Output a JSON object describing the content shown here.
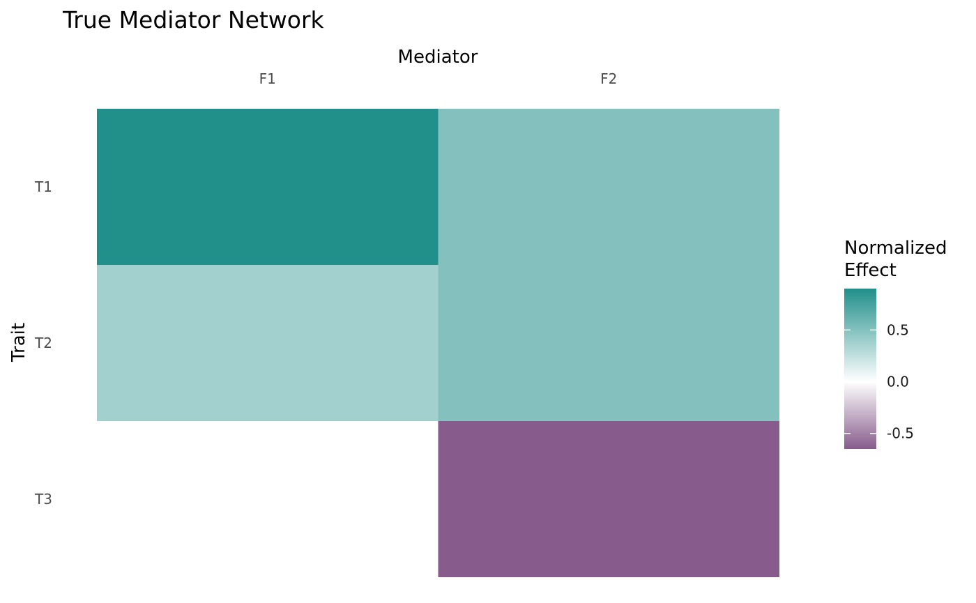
{
  "chart_data": {
    "type": "heatmap",
    "title": "True Mediator Network",
    "xlabel": "Mediator",
    "ylabel": "Trait",
    "x_categories": [
      "F1",
      "F2"
    ],
    "y_categories": [
      "T1",
      "T2",
      "T3"
    ],
    "x_axis_position": "top",
    "cells": [
      {
        "x": "F1",
        "y": "T1",
        "value": 0.9
      },
      {
        "x": "F2",
        "y": "T1",
        "value": 0.5
      },
      {
        "x": "F1",
        "y": "T2",
        "value": 0.38
      },
      {
        "x": "F2",
        "y": "T2",
        "value": 0.5
      },
      {
        "x": "F2",
        "y": "T3",
        "value": -0.65
      }
    ],
    "legend": {
      "title": "Normalized Effect",
      "title_lines": [
        "Normalized",
        "Effect"
      ],
      "placement": "right",
      "ticks": [
        0.5,
        0.0,
        -0.5
      ],
      "tick_labels": [
        "0.5",
        "0.0",
        "-0.5"
      ],
      "range": [
        -0.65,
        0.9
      ]
    },
    "color_scale": {
      "low": "#875c8c",
      "mid": "#ffffff",
      "high": "#218f8a",
      "midpoint": 0
    },
    "grid": false
  }
}
